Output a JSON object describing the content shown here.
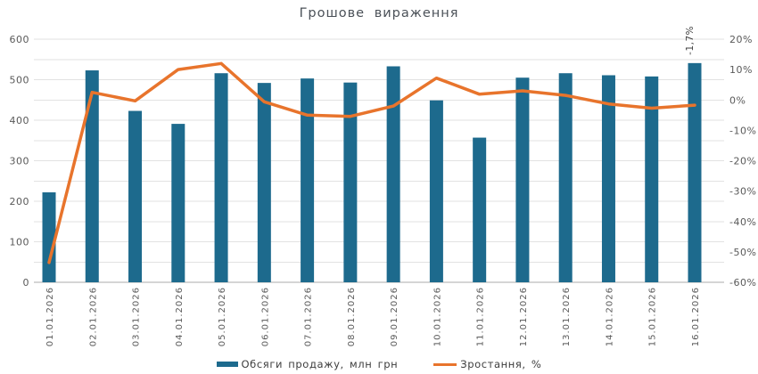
{
  "title": "Грошове вираження",
  "colors": {
    "bar": "#1d6a8d",
    "line": "#e8742c",
    "grid": "#e2e2e2",
    "axis_line": "#ababab",
    "tick_text": "#595959",
    "title_text": "#4b5158",
    "annotation_text": "#3f3f3f",
    "legend_text": "#3d3d3d"
  },
  "chart_data": {
    "type": "bar",
    "title": "Грошове вираження",
    "categories": [
      "01.01.2026",
      "02.01.2026",
      "03.01.2026",
      "04.01.2026",
      "05.01.2026",
      "06.01.2026",
      "07.01.2026",
      "08.01.2026",
      "09.01.2026",
      "10.01.2026",
      "11.01.2026",
      "12.01.2026",
      "13.01.2026",
      "14.01.2026",
      "15.01.2026",
      "16.01.2026"
    ],
    "series": [
      {
        "name": "Обсяги продажу, млн грн",
        "type": "bar",
        "axis": "left",
        "values": [
          222,
          523,
          423,
          391,
          516,
          492,
          503,
          493,
          533,
          449,
          357,
          505,
          516,
          511,
          508,
          541
        ]
      },
      {
        "name": "Зростання, %",
        "type": "line",
        "axis": "right",
        "values": [
          -53.5,
          2.5,
          -0.3,
          10,
          12,
          -0.6,
          -5,
          -5.4,
          -2,
          7.2,
          1.9,
          3,
          1.5,
          -1.3,
          -2.7,
          -1.7
        ]
      }
    ],
    "left_axis": {
      "min": 0,
      "max": 600,
      "label_step": 100,
      "grid_step": 50,
      "ticks": [
        "0",
        "100",
        "200",
        "300",
        "400",
        "500",
        "600"
      ]
    },
    "right_axis": {
      "min": -60,
      "max": 20,
      "label_step": 10,
      "suffix": "%",
      "ticks": [
        "20%",
        "10%",
        "0%",
        "-10%",
        "-20%",
        "-30%",
        "-40%",
        "-50%",
        "-60%"
      ]
    },
    "annotation": {
      "text": "-1,7%",
      "target_index": 15
    },
    "legend_position": "bottom",
    "grid": true
  },
  "legend": {
    "items": [
      {
        "label": "Обсяги продажу, млн грн",
        "shape": "bar"
      },
      {
        "label": "Зростання, %",
        "shape": "line"
      }
    ]
  }
}
